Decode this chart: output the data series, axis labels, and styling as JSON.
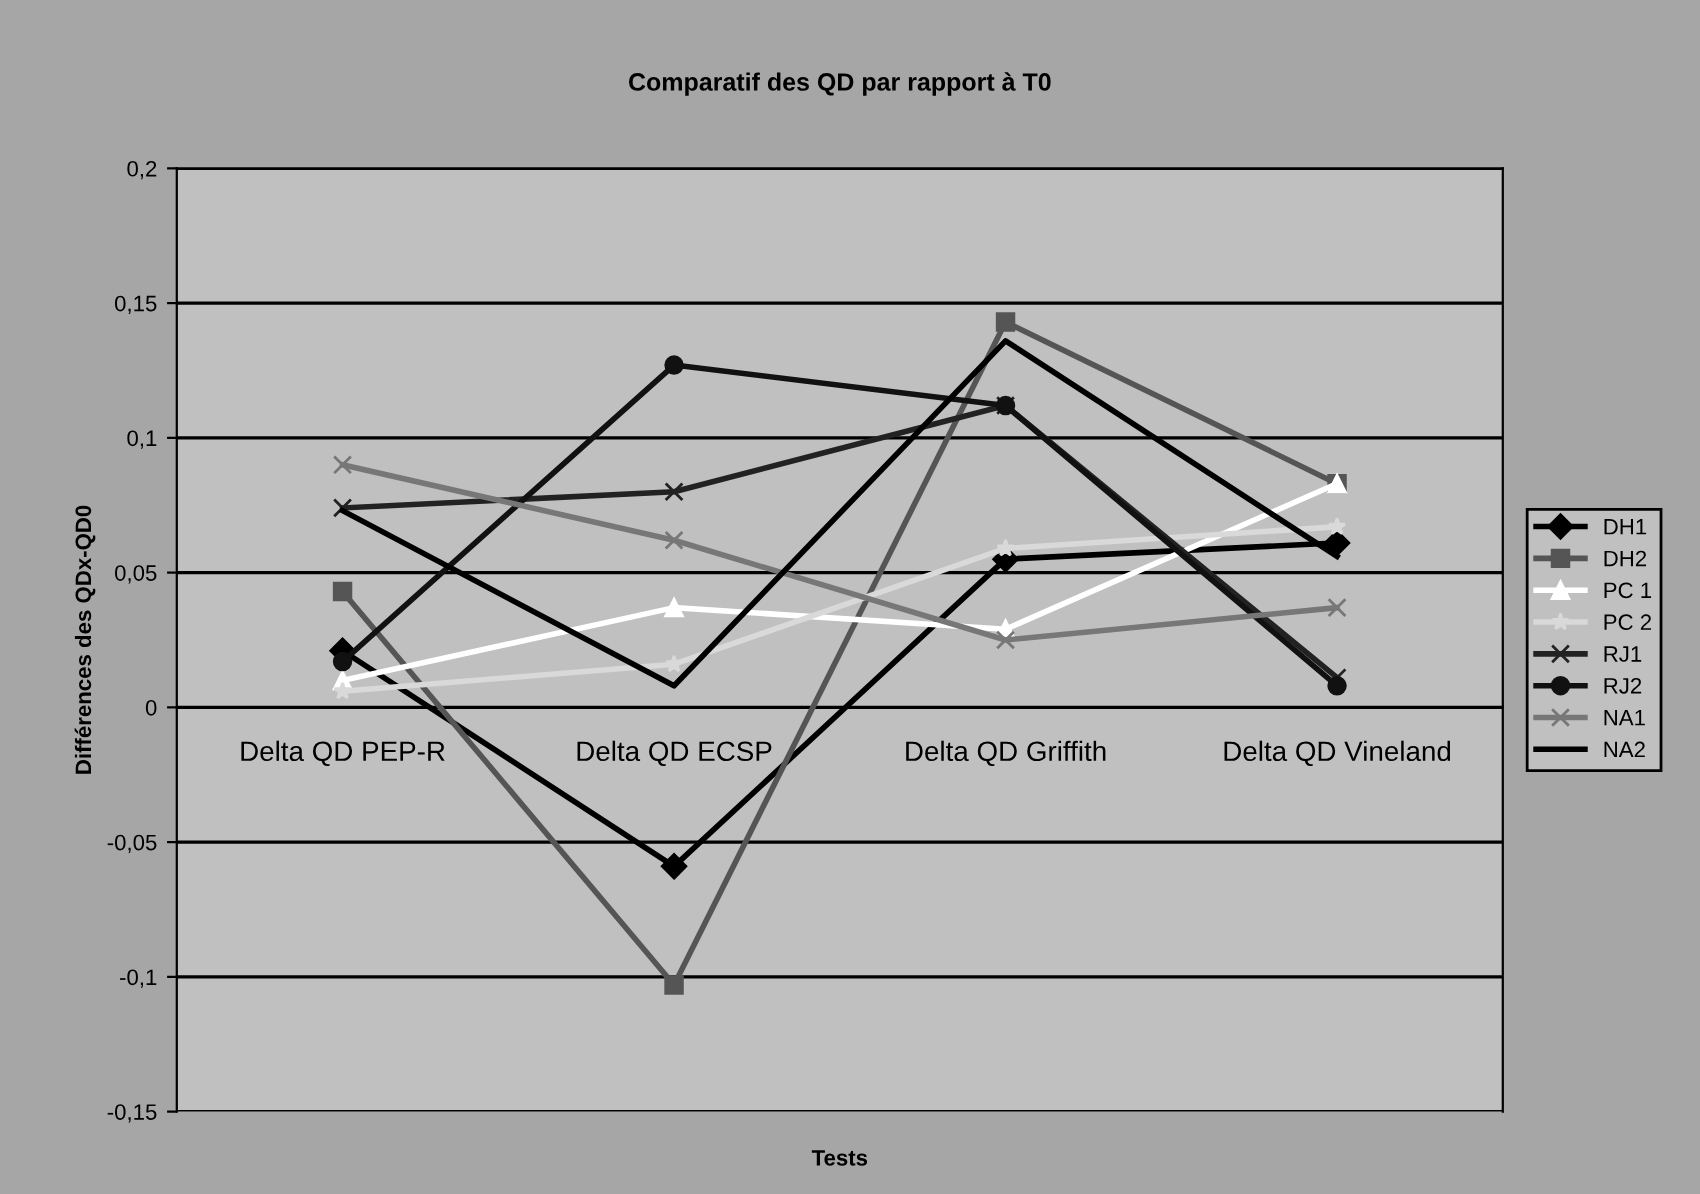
{
  "chart_data": {
    "type": "line",
    "title": "Comparatif des QD par rapport à T0",
    "xlabel": "Tests",
    "ylabel": "Différences des QDx-QD0",
    "categories": [
      "Delta QD PEP-R",
      "Delta QD ECSP",
      "Delta QD Griffith",
      "Delta QD Vineland"
    ],
    "series": [
      {
        "name": "DH1",
        "color": "#000000",
        "marker": "diamond",
        "values": [
          0.021,
          -0.059,
          0.055,
          0.061
        ]
      },
      {
        "name": "DH2",
        "color": "#555555",
        "marker": "square",
        "values": [
          0.043,
          -0.103,
          0.143,
          0.083
        ]
      },
      {
        "name": "PC 1",
        "color": "#ffffff",
        "marker": "triangle",
        "values": [
          0.01,
          0.037,
          0.029,
          0.083
        ]
      },
      {
        "name": "PC 2",
        "color": "#d9d9d9",
        "marker": "star",
        "values": [
          0.006,
          0.016,
          0.059,
          0.067
        ]
      },
      {
        "name": "RJ1",
        "color": "#222222",
        "marker": "cross",
        "values": [
          0.074,
          0.08,
          0.112,
          0.011
        ]
      },
      {
        "name": "RJ2",
        "color": "#111111",
        "marker": "circle",
        "values": [
          0.017,
          0.127,
          0.112,
          0.008
        ]
      },
      {
        "name": "NA1",
        "color": "#777777",
        "marker": "cross",
        "values": [
          0.09,
          0.062,
          0.025,
          0.037
        ]
      },
      {
        "name": "NA2",
        "color": "#000000",
        "marker": "none",
        "values": [
          0.073,
          0.008,
          0.136,
          0.056
        ]
      }
    ],
    "ylim": [
      -0.15,
      0.2
    ],
    "yticks": [
      {
        "value": -0.15,
        "label": "-0,15"
      },
      {
        "value": -0.1,
        "label": "-0,1"
      },
      {
        "value": -0.05,
        "label": "-0,05"
      },
      0,
      {
        "value": 0.05,
        "label": "0,05"
      },
      {
        "value": 0.1,
        "label": "0,1"
      },
      {
        "value": 0.15,
        "label": "0,15"
      },
      {
        "value": 0.2,
        "label": "0,2"
      }
    ],
    "grid": "y",
    "legend": "right",
    "line_style": "solid"
  }
}
